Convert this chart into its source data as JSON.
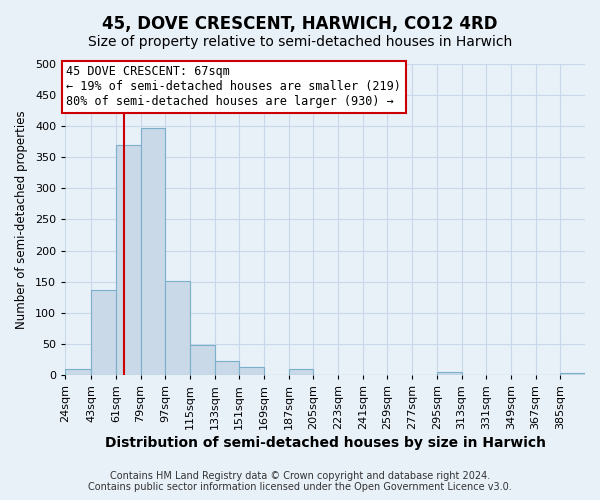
{
  "title": "45, DOVE CRESCENT, HARWICH, CO12 4RD",
  "subtitle": "Size of property relative to semi-detached houses in Harwich",
  "xlabel": "Distribution of semi-detached houses by size in Harwich",
  "ylabel": "Number of semi-detached properties",
  "bin_labels": [
    "24sqm",
    "43sqm",
    "61sqm",
    "79sqm",
    "97sqm",
    "115sqm",
    "133sqm",
    "151sqm",
    "169sqm",
    "187sqm",
    "205sqm",
    "223sqm",
    "241sqm",
    "259sqm",
    "277sqm",
    "295sqm",
    "313sqm",
    "331sqm",
    "349sqm",
    "367sqm",
    "385sqm"
  ],
  "bin_edges": [
    24,
    43,
    61,
    79,
    97,
    115,
    133,
    151,
    169,
    187,
    205,
    223,
    241,
    259,
    277,
    295,
    313,
    331,
    349,
    367,
    385,
    403
  ],
  "bar_heights": [
    10,
    137,
    370,
    397,
    151,
    48,
    23,
    12,
    0,
    10,
    0,
    0,
    0,
    0,
    0,
    4,
    0,
    0,
    0,
    0,
    3
  ],
  "bar_color": "#c9d9e8",
  "bar_edgecolor": "#7ab0cc",
  "grid_color": "#c8d8e8",
  "background_color": "#e8f0f8",
  "property_size": 67,
  "property_line_color": "#cc0000",
  "annotation_line1": "45 DOVE CRESCENT: 67sqm",
  "annotation_line2": "← 19% of semi-detached houses are smaller (219)",
  "annotation_line3": "80% of semi-detached houses are larger (930) →",
  "annotation_box_color": "#ffffff",
  "annotation_box_edgecolor": "#cc0000",
  "ylim": [
    0,
    500
  ],
  "footer_text": "Contains HM Land Registry data © Crown copyright and database right 2024.\nContains public sector information licensed under the Open Government Licence v3.0.",
  "title_fontsize": 12,
  "subtitle_fontsize": 10,
  "xlabel_fontsize": 10,
  "ylabel_fontsize": 8.5,
  "tick_fontsize": 8,
  "annotation_fontsize": 8.5,
  "footer_fontsize": 7
}
